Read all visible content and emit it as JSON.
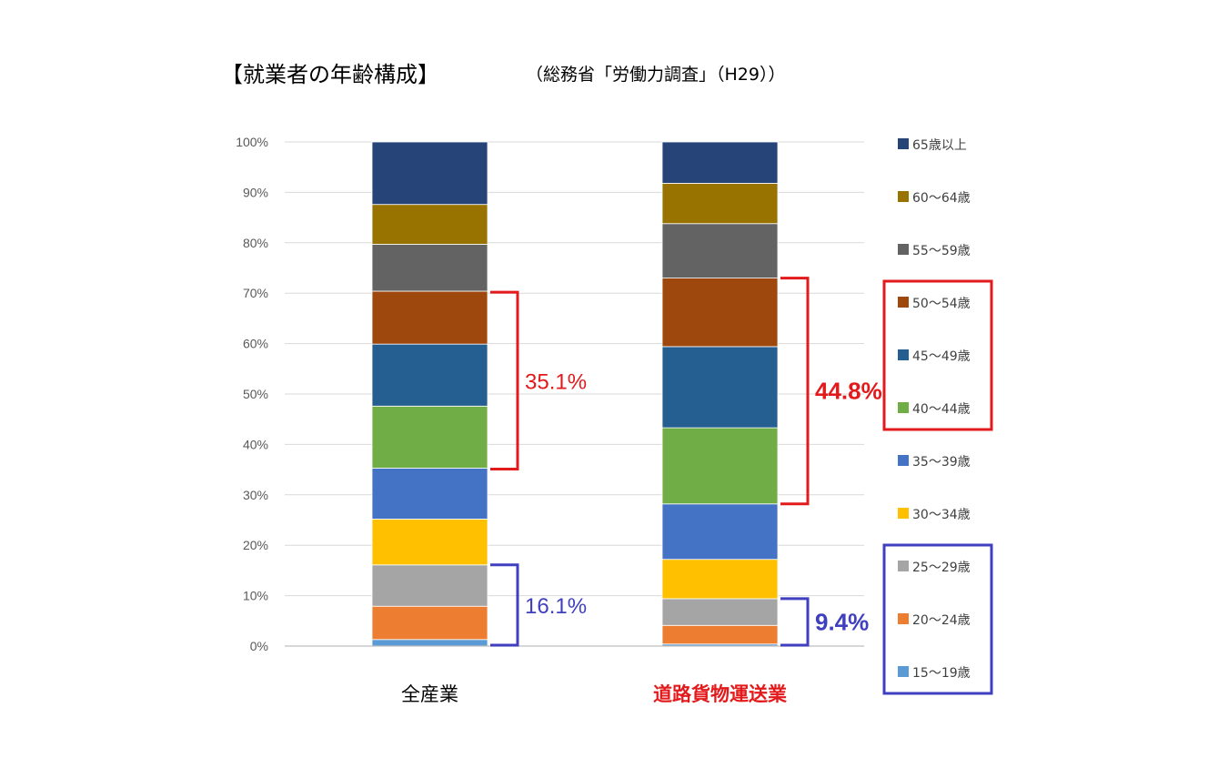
{
  "title": "【就業者の年齢構成】",
  "subtitle": "（総務省「労働力調査」（H29））",
  "chart_data": {
    "type": "bar",
    "stacked": true,
    "percent_stacked": true,
    "categories": [
      "全産業",
      "道路貨物運送業"
    ],
    "category_colors": [
      "#000000",
      "#e31a1c"
    ],
    "y_ticks": [
      "0%",
      "10%",
      "20%",
      "30%",
      "40%",
      "50%",
      "60%",
      "70%",
      "80%",
      "90%",
      "100%"
    ],
    "ylim": [
      0,
      100
    ],
    "grid": true,
    "legend_position": "right",
    "series": [
      {
        "name": "15〜19歳",
        "color": "#5b9bd5",
        "values": [
          1.3,
          0.4
        ]
      },
      {
        "name": "20〜24歳",
        "color": "#ed7d31",
        "values": [
          6.6,
          3.7
        ]
      },
      {
        "name": "25〜29歳",
        "color": "#a5a5a5",
        "values": [
          8.2,
          5.3
        ]
      },
      {
        "name": "30〜34歳",
        "color": "#ffc000",
        "values": [
          9.1,
          7.8
        ]
      },
      {
        "name": "35〜39歳",
        "color": "#4472c4",
        "values": [
          10.1,
          11.0
        ]
      },
      {
        "name": "40〜44歳",
        "color": "#70ad47",
        "values": [
          12.3,
          15.1
        ]
      },
      {
        "name": "45〜49歳",
        "color": "#255e91",
        "values": [
          12.3,
          16.1
        ]
      },
      {
        "name": "50〜54歳",
        "color": "#9e480e",
        "values": [
          10.5,
          13.6
        ]
      },
      {
        "name": "55〜59歳",
        "color": "#636363",
        "values": [
          9.3,
          10.8
        ]
      },
      {
        "name": "60〜64歳",
        "color": "#997300",
        "values": [
          7.9,
          8.0
        ]
      },
      {
        "name": "65歳以上",
        "color": "#264478",
        "values": [
          12.4,
          8.2
        ]
      }
    ],
    "annotations": [
      {
        "text": "35.1%",
        "bar": 0,
        "from": 35.1,
        "to": 70.2,
        "color": "#e31a1c",
        "bold": false
      },
      {
        "text": "44.8%",
        "bar": 1,
        "from": 28.2,
        "to": 73.0,
        "color": "#e31a1c",
        "bold": true
      },
      {
        "text": "16.1%",
        "bar": 0,
        "from": 0,
        "to": 16.1,
        "color": "#3f3fbf",
        "bold": false
      },
      {
        "text": "9.4%",
        "bar": 1,
        "from": 0,
        "to": 9.4,
        "color": "#3f3fbf",
        "bold": true
      }
    ],
    "legend_highlights": [
      {
        "series": [
          "50〜54歳",
          "45〜49歳",
          "40〜44歳"
        ],
        "color": "#e31a1c"
      },
      {
        "series": [
          "25〜29歳",
          "20〜24歳",
          "15〜19歳"
        ],
        "color": "#3f3fbf"
      }
    ]
  }
}
